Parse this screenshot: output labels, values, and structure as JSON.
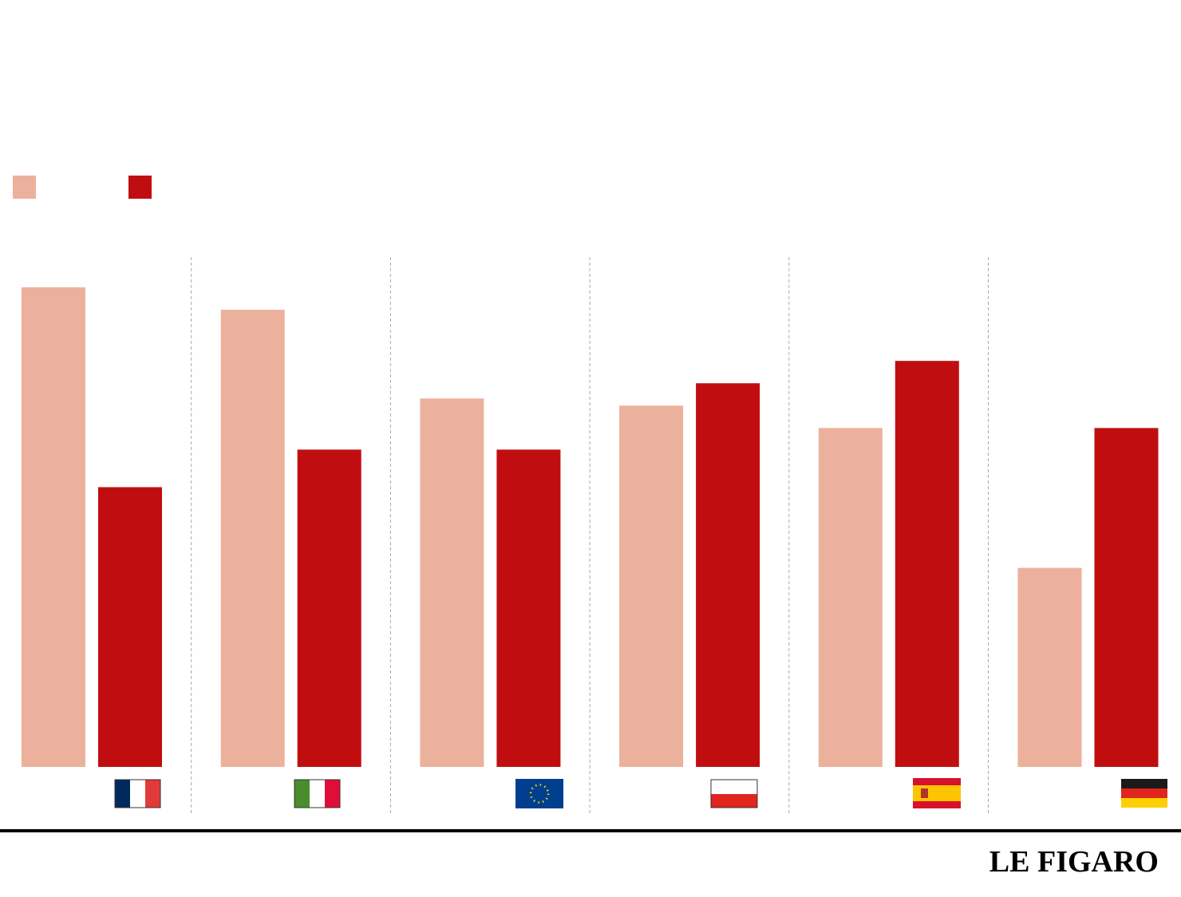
{
  "chart_data": {
    "type": "bar",
    "categories": [
      null,
      null,
      null,
      null,
      null,
      null
    ],
    "series": [
      {
        "color": "#ecb19c",
        "values": [
          600,
          572,
          461,
          452,
          424,
          249
        ]
      },
      {
        "color": "#c00e10",
        "values": [
          350,
          397,
          397,
          480,
          508,
          424
        ]
      }
    ],
    "ylim": [
      0,
      640
    ],
    "brand": "LE FIGARO"
  }
}
